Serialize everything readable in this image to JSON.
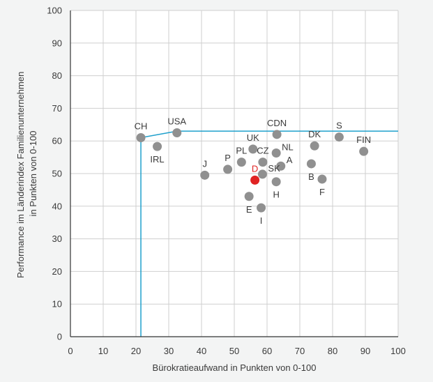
{
  "chart_data": {
    "type": "scatter",
    "title": "",
    "xlabel": "Bürokratieaufwand in Punkten von 0-100",
    "ylabel_lines": [
      "Performance im Länderindex Familienunternehmen",
      "in Punkten von 0-100"
    ],
    "xlim": [
      0,
      100
    ],
    "ylim": [
      0,
      100
    ],
    "xticks": [
      "0",
      "10",
      "20",
      "30",
      "40",
      "50",
      "60",
      "70",
      "80",
      "90",
      "100"
    ],
    "yticks": [
      "0",
      "10",
      "20",
      "30",
      "40",
      "50",
      "60",
      "70",
      "80",
      "90",
      "100"
    ],
    "grid": true,
    "colors": {
      "point": "#909090",
      "highlight": "#e02323",
      "frontier": "#1fa0cc",
      "grid": "#cfcfcf",
      "axis": "#333333",
      "plot_bg": "#ffffff"
    },
    "frontier_line": [
      {
        "x": 21.5,
        "y": 0
      },
      {
        "x": 21.5,
        "y": 61
      },
      {
        "x": 32.5,
        "y": 63
      },
      {
        "x": 100,
        "y": 63
      }
    ],
    "points": [
      {
        "label": "CH",
        "x": 21.5,
        "y": 61,
        "pos": "above"
      },
      {
        "label": "IRL",
        "x": 26.5,
        "y": 58.3,
        "pos": "below"
      },
      {
        "label": "USA",
        "x": 32.5,
        "y": 62.5,
        "pos": "above"
      },
      {
        "label": "J",
        "x": 41,
        "y": 49.5,
        "pos": "above-left"
      },
      {
        "label": "P",
        "x": 48,
        "y": 51.3,
        "pos": "above"
      },
      {
        "label": "PL",
        "x": 52.2,
        "y": 53.5,
        "pos": "above"
      },
      {
        "label": "UK",
        "x": 55.7,
        "y": 57.5,
        "pos": "above"
      },
      {
        "label": "CZ",
        "x": 58.7,
        "y": 53.5,
        "pos": "above"
      },
      {
        "label": "D",
        "x": 56.3,
        "y": 48,
        "pos": "above",
        "highlight": true
      },
      {
        "label": "SK",
        "x": 58.6,
        "y": 49.8,
        "pos": "right"
      },
      {
        "label": "E",
        "x": 54.5,
        "y": 43,
        "pos": "below"
      },
      {
        "label": "I",
        "x": 58.2,
        "y": 39.5,
        "pos": "below"
      },
      {
        "label": "CDN",
        "x": 63,
        "y": 62,
        "pos": "above"
      },
      {
        "label": "NL",
        "x": 62.8,
        "y": 56.3,
        "pos": "right"
      },
      {
        "label": "A",
        "x": 64.2,
        "y": 52.3,
        "pos": "right"
      },
      {
        "label": "H",
        "x": 62.8,
        "y": 47.5,
        "pos": "below"
      },
      {
        "label": "DK",
        "x": 74.5,
        "y": 58.5,
        "pos": "above"
      },
      {
        "label": "B",
        "x": 73.5,
        "y": 53,
        "pos": "below"
      },
      {
        "label": "F",
        "x": 76.8,
        "y": 48.3,
        "pos": "below"
      },
      {
        "label": "S",
        "x": 82,
        "y": 61.2,
        "pos": "above"
      },
      {
        "label": "FIN",
        "x": 89.5,
        "y": 56.8,
        "pos": "above"
      }
    ]
  }
}
